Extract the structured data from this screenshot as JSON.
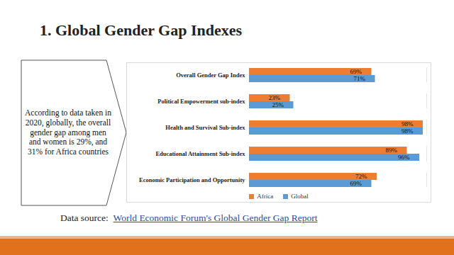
{
  "slide": {
    "title": "1. Global Gender Gap Indexes",
    "note": "According to data taken in 2020, globally, the overall gender gap among men and women is 29%, and 31% for Africa countries",
    "source_prefix": "Data source:",
    "source_link": "World Economic Forum's Global Gender Gap Report"
  },
  "chart_data": {
    "type": "bar",
    "orientation": "horizontal",
    "categories": [
      "Overall Gender Gap Index",
      "Political Empowerment sub-index",
      "Health and Survival Sub-index",
      "Educational Attainment Sub-index",
      "Economic Participation and Opportunity"
    ],
    "series": [
      {
        "name": "Africa",
        "color": "#ed7d31",
        "values": [
          69,
          23,
          98,
          89,
          72
        ],
        "value_labels": [
          "69%",
          "23%",
          "98%",
          "89%",
          "72%"
        ]
      },
      {
        "name": "Global",
        "color": "#5b9bd5",
        "values": [
          71,
          25,
          98,
          96,
          69
        ],
        "value_labels": [
          "71%",
          "25%",
          "98%",
          "96%",
          "69%"
        ]
      }
    ],
    "xlim": [
      0,
      100
    ],
    "xticks": [],
    "data_labels": true,
    "tick_labels": "y",
    "legend": "bottom",
    "grid": false
  }
}
